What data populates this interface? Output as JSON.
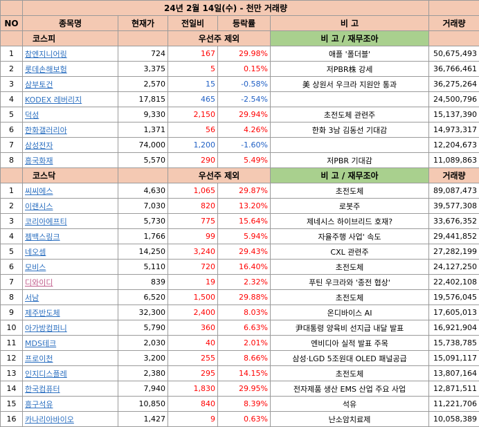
{
  "title": "24년 2월 14일(수) - 천만 거래량",
  "headers": {
    "no": "NO",
    "name": "종목명",
    "price": "현재가",
    "change": "전일비",
    "rate": "등락률",
    "note": "비 고",
    "volume": "거래량"
  },
  "kospi": {
    "label": "코스피",
    "excl": "우선주 제외",
    "note_header": "비 고 / 재무조아",
    "volume_header": "",
    "rows": [
      {
        "no": "1",
        "name": "참엔지니어링",
        "price": "724",
        "change": "167",
        "rate": "29.98%",
        "note": "애플 '폴더블'",
        "volume": "50,675,493",
        "dir": "up"
      },
      {
        "no": "2",
        "name": "롯데손해보험",
        "price": "3,375",
        "change": "5",
        "rate": "0.15%",
        "note": "저PBR株 강세",
        "volume": "36,766,461",
        "dir": "up"
      },
      {
        "no": "3",
        "name": "삼부토건",
        "price": "2,570",
        "change": "15",
        "rate": "-0.58%",
        "note": "美 상원서 우크라 지원안 통과",
        "volume": "36,275,264",
        "dir": "down"
      },
      {
        "no": "4",
        "name": "KODEX 레버리지",
        "price": "17,815",
        "change": "465",
        "rate": "-2.54%",
        "note": "",
        "volume": "24,500,796",
        "dir": "down"
      },
      {
        "no": "5",
        "name": "덕성",
        "price": "9,330",
        "change": "2,150",
        "rate": "29.94%",
        "note": "초전도체 관련주",
        "volume": "15,137,390",
        "dir": "up"
      },
      {
        "no": "6",
        "name": "한화갤러리아",
        "price": "1,371",
        "change": "56",
        "rate": "4.26%",
        "note": "한화 3남 김동선 기대감",
        "volume": "14,973,317",
        "dir": "up"
      },
      {
        "no": "7",
        "name": "삼성전자",
        "price": "74,000",
        "change": "1,200",
        "rate": "-1.60%",
        "note": "",
        "volume": "12,204,673",
        "dir": "down"
      },
      {
        "no": "8",
        "name": "흥국화재",
        "price": "5,570",
        "change": "290",
        "rate": "5.49%",
        "note": "저PBR 기대감",
        "volume": "11,089,863",
        "dir": "up"
      }
    ]
  },
  "kosdaq": {
    "label": "코스닥",
    "excl": "우선주 제외",
    "note_header": "비 고 / 재무조아",
    "volume_header": "거래량",
    "rows": [
      {
        "no": "1",
        "name": "씨씨에스",
        "price": "4,630",
        "change": "1,065",
        "rate": "29.87%",
        "note": "초전도체",
        "volume": "89,087,473",
        "dir": "up"
      },
      {
        "no": "2",
        "name": "이랜시스",
        "price": "7,030",
        "change": "820",
        "rate": "13.20%",
        "note": "로봇주",
        "volume": "39,577,308",
        "dir": "up"
      },
      {
        "no": "3",
        "name": "코리아에프티",
        "price": "5,730",
        "change": "775",
        "rate": "15.64%",
        "note": "제네시스 하이브리드 호재?",
        "volume": "33,676,352",
        "dir": "up"
      },
      {
        "no": "4",
        "name": "젬백스링크",
        "price": "1,766",
        "change": "99",
        "rate": "5.94%",
        "note": "자율주행 사업' 속도",
        "volume": "29,441,852",
        "dir": "up"
      },
      {
        "no": "5",
        "name": "네오셈",
        "price": "14,250",
        "change": "3,240",
        "rate": "29.43%",
        "note": "CXL 관련주",
        "volume": "27,282,199",
        "dir": "up"
      },
      {
        "no": "6",
        "name": "모비스",
        "price": "5,110",
        "change": "720",
        "rate": "16.40%",
        "note": "초전도체",
        "volume": "24,127,250",
        "dir": "up"
      },
      {
        "no": "7",
        "name": "디와이디",
        "price": "839",
        "change": "19",
        "rate": "2.32%",
        "note": "푸틴 우크라와 '종전 협상'",
        "volume": "22,402,108",
        "dir": "up",
        "pink": true
      },
      {
        "no": "8",
        "name": "서남",
        "price": "6,520",
        "change": "1,500",
        "rate": "29.88%",
        "note": "초전도체",
        "volume": "19,576,045",
        "dir": "up"
      },
      {
        "no": "9",
        "name": "제주반도체",
        "price": "32,300",
        "change": "2,400",
        "rate": "8.03%",
        "note": "온디바이스 AI",
        "volume": "17,605,013",
        "dir": "up"
      },
      {
        "no": "10",
        "name": "아가방컴퍼니",
        "price": "5,790",
        "change": "360",
        "rate": "6.63%",
        "note": "尹대통령 양육비 선지급 내달 발표",
        "volume": "16,921,904",
        "dir": "up"
      },
      {
        "no": "11",
        "name": "MDS테크",
        "price": "2,030",
        "change": "40",
        "rate": "2.01%",
        "note": "엔비디아 실적 발표 주목",
        "volume": "15,738,785",
        "dir": "up"
      },
      {
        "no": "12",
        "name": "프로이천",
        "price": "3,200",
        "change": "255",
        "rate": "8.66%",
        "note": "삼성·LGD 5조원대 OLED 패널공급",
        "volume": "15,091,117",
        "dir": "up"
      },
      {
        "no": "13",
        "name": "인지디스플레",
        "price": "2,380",
        "change": "295",
        "rate": "14.15%",
        "note": "초전도체",
        "volume": "13,807,164",
        "dir": "up"
      },
      {
        "no": "14",
        "name": "한국컴퓨터",
        "price": "7,940",
        "change": "1,830",
        "rate": "29.95%",
        "note": "전자제품 생산 EMS 산업 주요 사업",
        "volume": "12,871,511",
        "dir": "up"
      },
      {
        "no": "15",
        "name": "흥구석유",
        "price": "10,850",
        "change": "840",
        "rate": "8.39%",
        "note": "석유",
        "volume": "11,221,706",
        "dir": "up"
      },
      {
        "no": "16",
        "name": "카나리아바이오",
        "price": "1,427",
        "change": "9",
        "rate": "0.63%",
        "note": "난소암치료제",
        "volume": "10,058,389",
        "dir": "up"
      }
    ]
  },
  "colors": {
    "header_bg": "#f4c9b3",
    "green_bg": "#a9d08e",
    "up": "#ff0000",
    "down": "#1f5fc4",
    "link": "#2b6fc0",
    "link_pink": "#c05a8a"
  }
}
